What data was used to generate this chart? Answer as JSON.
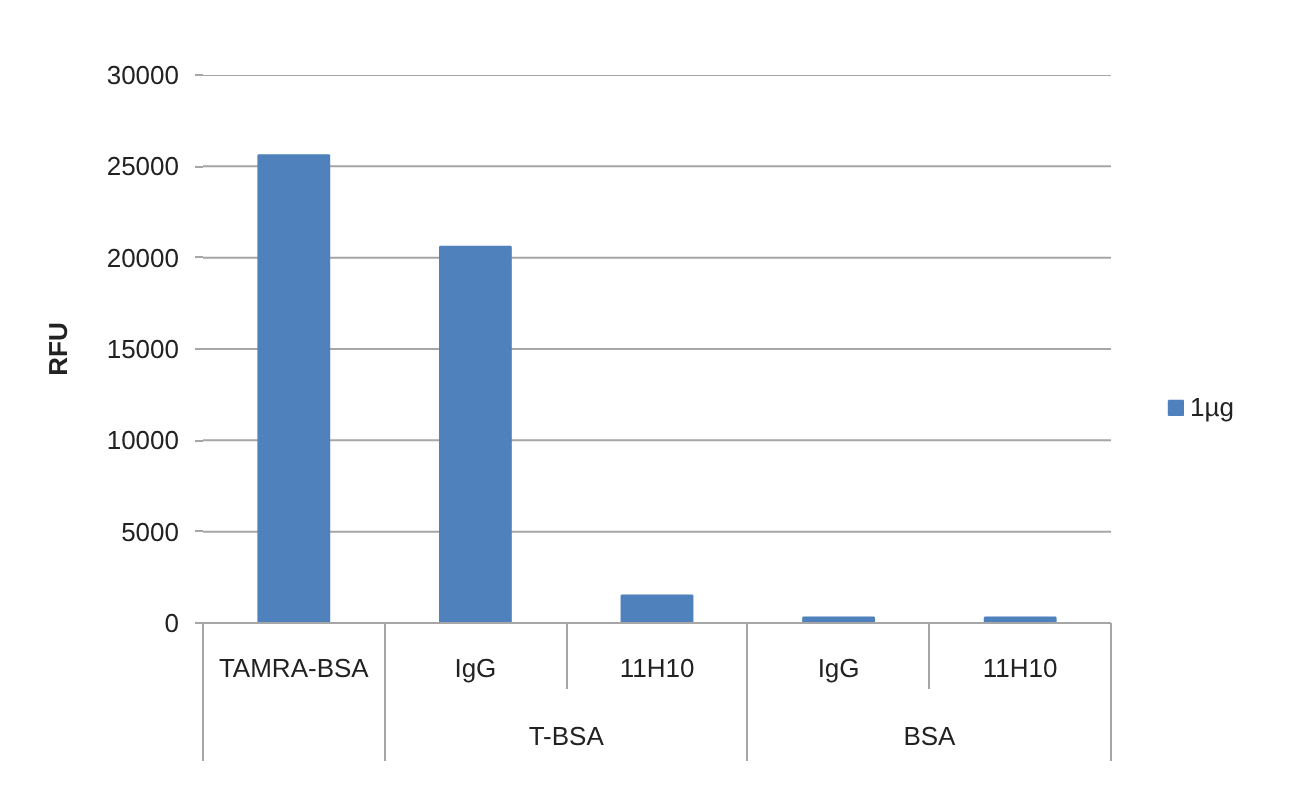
{
  "chart_data": {
    "type": "bar",
    "ylabel": "RFU",
    "categories": [
      "TAMRA-BSA",
      "IgG",
      "11H10",
      "IgG",
      "11H10"
    ],
    "series": [
      {
        "name": "1µg",
        "color": "#4f81bd",
        "values": [
          25600,
          20600,
          1500,
          300,
          300
        ]
      }
    ],
    "ylim": [
      0,
      30000
    ],
    "yticks": [
      0,
      5000,
      10000,
      15000,
      20000,
      25000,
      30000
    ],
    "grid": "y",
    "legend": "right",
    "annotations": [
      "T-BSA",
      "BSA"
    ]
  }
}
